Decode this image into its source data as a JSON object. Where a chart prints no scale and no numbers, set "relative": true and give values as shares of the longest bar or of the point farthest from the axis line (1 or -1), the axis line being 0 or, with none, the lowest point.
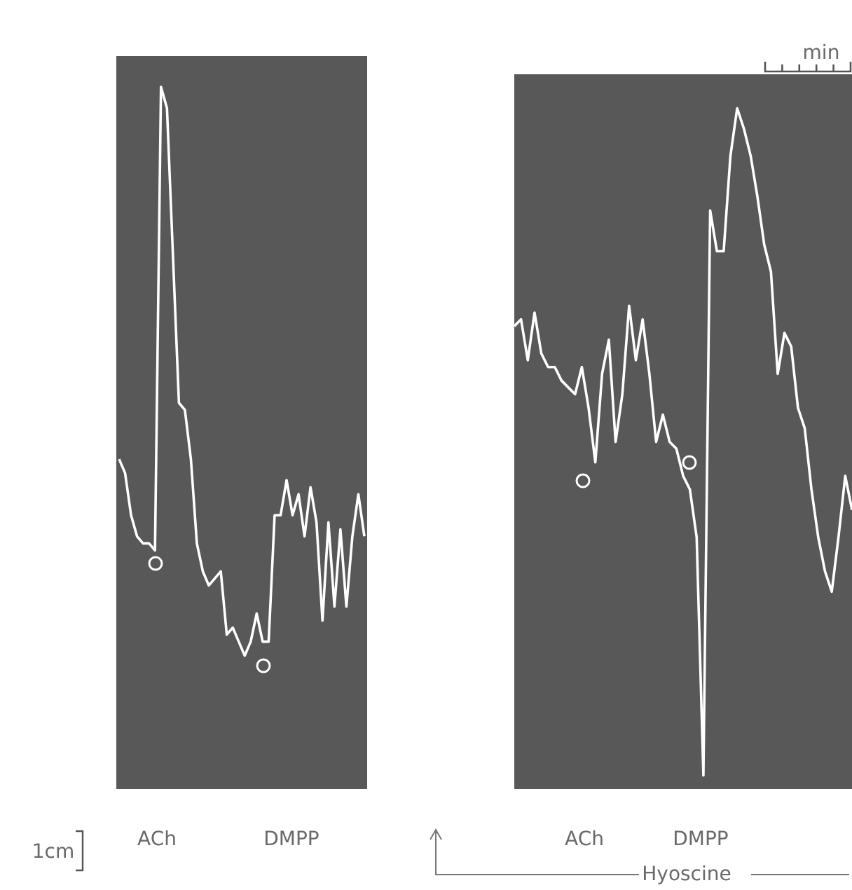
{
  "chart_data": [
    {
      "type": "line",
      "relative": true,
      "categories": [
        null,
        null,
        null,
        null,
        null,
        null,
        null,
        null,
        null,
        null,
        null,
        null,
        null,
        null,
        null,
        null,
        null,
        null,
        null,
        null,
        null,
        null,
        null,
        null,
        null,
        null,
        null,
        null,
        null,
        null,
        null,
        null,
        null,
        null,
        null,
        null,
        null,
        null,
        null,
        null,
        null,
        null
      ],
      "series": [
        {
          "color": "#ffffff",
          "values": [
            0.47,
            0.45,
            0.39,
            0.36,
            0.35,
            0.35,
            0.34,
            1.0,
            0.97,
            0.76,
            0.55,
            0.54,
            0.47,
            0.35,
            0.31,
            0.29,
            0.3,
            0.31,
            0.22,
            0.23,
            0.21,
            0.19,
            0.21,
            0.25,
            0.21,
            0.21,
            0.39,
            0.39,
            0.44,
            0.39,
            0.42,
            0.36,
            0.43,
            0.38,
            0.24,
            0.38,
            0.26,
            0.37,
            0.26,
            0.36,
            0.42,
            0.36
          ]
        }
      ],
      "annotations": [
        "ACh",
        "DMPP",
        "1cm"
      ]
    },
    {
      "type": "line",
      "relative": true,
      "categories": [
        null,
        null,
        null,
        null,
        null,
        null,
        null,
        null,
        null,
        null,
        null,
        null,
        null,
        null,
        null,
        null,
        null,
        null,
        null,
        null,
        null,
        null,
        null,
        null,
        null,
        null,
        null,
        null,
        null,
        null,
        null,
        null,
        null,
        null,
        null,
        null,
        null,
        null,
        null,
        null,
        null,
        null,
        null,
        null,
        null,
        null,
        null,
        null,
        null,
        null,
        null
      ],
      "series": [
        {
          "color": "#ffffff",
          "values": [
            0.68,
            0.69,
            0.63,
            0.7,
            0.64,
            0.62,
            0.62,
            0.6,
            0.59,
            0.58,
            0.62,
            0.56,
            0.48,
            0.61,
            0.66,
            0.51,
            0.58,
            0.71,
            0.63,
            0.69,
            0.61,
            0.51,
            0.55,
            0.51,
            0.5,
            0.46,
            0.44,
            0.37,
            0.02,
            0.85,
            0.79,
            0.79,
            0.93,
            1.0,
            0.97,
            0.93,
            0.87,
            0.8,
            0.76,
            0.61,
            0.67,
            0.65,
            0.56,
            0.53,
            0.44,
            0.37,
            0.32,
            0.29,
            0.37,
            0.46,
            0.41
          ]
        }
      ],
      "annotations": [
        "ACh",
        "DMPP",
        "Hyoscine",
        "min"
      ]
    }
  ]
}
